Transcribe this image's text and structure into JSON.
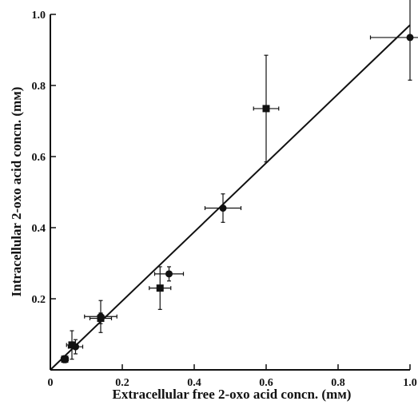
{
  "chart_data": {
    "type": "scatter",
    "title": "",
    "xlabel": "Extracellular free 2-oxo acid concn. (mм)",
    "ylabel": "Intracellular 2-oxo acid concn. (mм)",
    "xlim": [
      0,
      1.0
    ],
    "ylim": [
      0,
      1.0
    ],
    "x_ticks": [
      0,
      0.2,
      0.4,
      0.6,
      0.8,
      1.0
    ],
    "y_ticks": [
      0.2,
      0.4,
      0.6,
      0.8,
      1.0
    ],
    "x_tick_labels": [
      "0",
      "0.2",
      "0.4",
      "0.6",
      "0.8",
      "1.0"
    ],
    "y_tick_labels": [
      "0.2",
      "0.4",
      "0.6",
      "0.8",
      "1.0"
    ],
    "grid": false,
    "fit_line": {
      "x": [
        0,
        1.0
      ],
      "y": [
        0,
        0.97
      ]
    },
    "series": [
      {
        "marker": "circle",
        "points": [
          {
            "x": 0.07,
            "y": 0.065,
            "xerr": 0.02,
            "yerr": 0.02
          },
          {
            "x": 0.14,
            "y": 0.15,
            "xerr": 0.045,
            "yerr": 0.045
          },
          {
            "x": 0.33,
            "y": 0.27,
            "xerr": 0.04,
            "yerr": 0.02
          },
          {
            "x": 0.48,
            "y": 0.455,
            "xerr": 0.05,
            "yerr": 0.04
          },
          {
            "x": 1.0,
            "y": 0.935,
            "xerr": 0.11,
            "yerr": 0.12
          }
        ]
      },
      {
        "marker": "square",
        "points": [
          {
            "x": 0.04,
            "y": 0.03,
            "xerr": 0.01,
            "yerr": 0.01
          },
          {
            "x": 0.06,
            "y": 0.07,
            "xerr": 0.015,
            "yerr": 0.04
          },
          {
            "x": 0.14,
            "y": 0.145,
            "xerr": 0.03,
            "yerr": 0.015
          },
          {
            "x": 0.305,
            "y": 0.23,
            "xerr": 0.03,
            "yerr": 0.06
          },
          {
            "x": 0.6,
            "y": 0.735,
            "xerr": 0.035,
            "yerr": 0.15
          }
        ]
      }
    ]
  }
}
